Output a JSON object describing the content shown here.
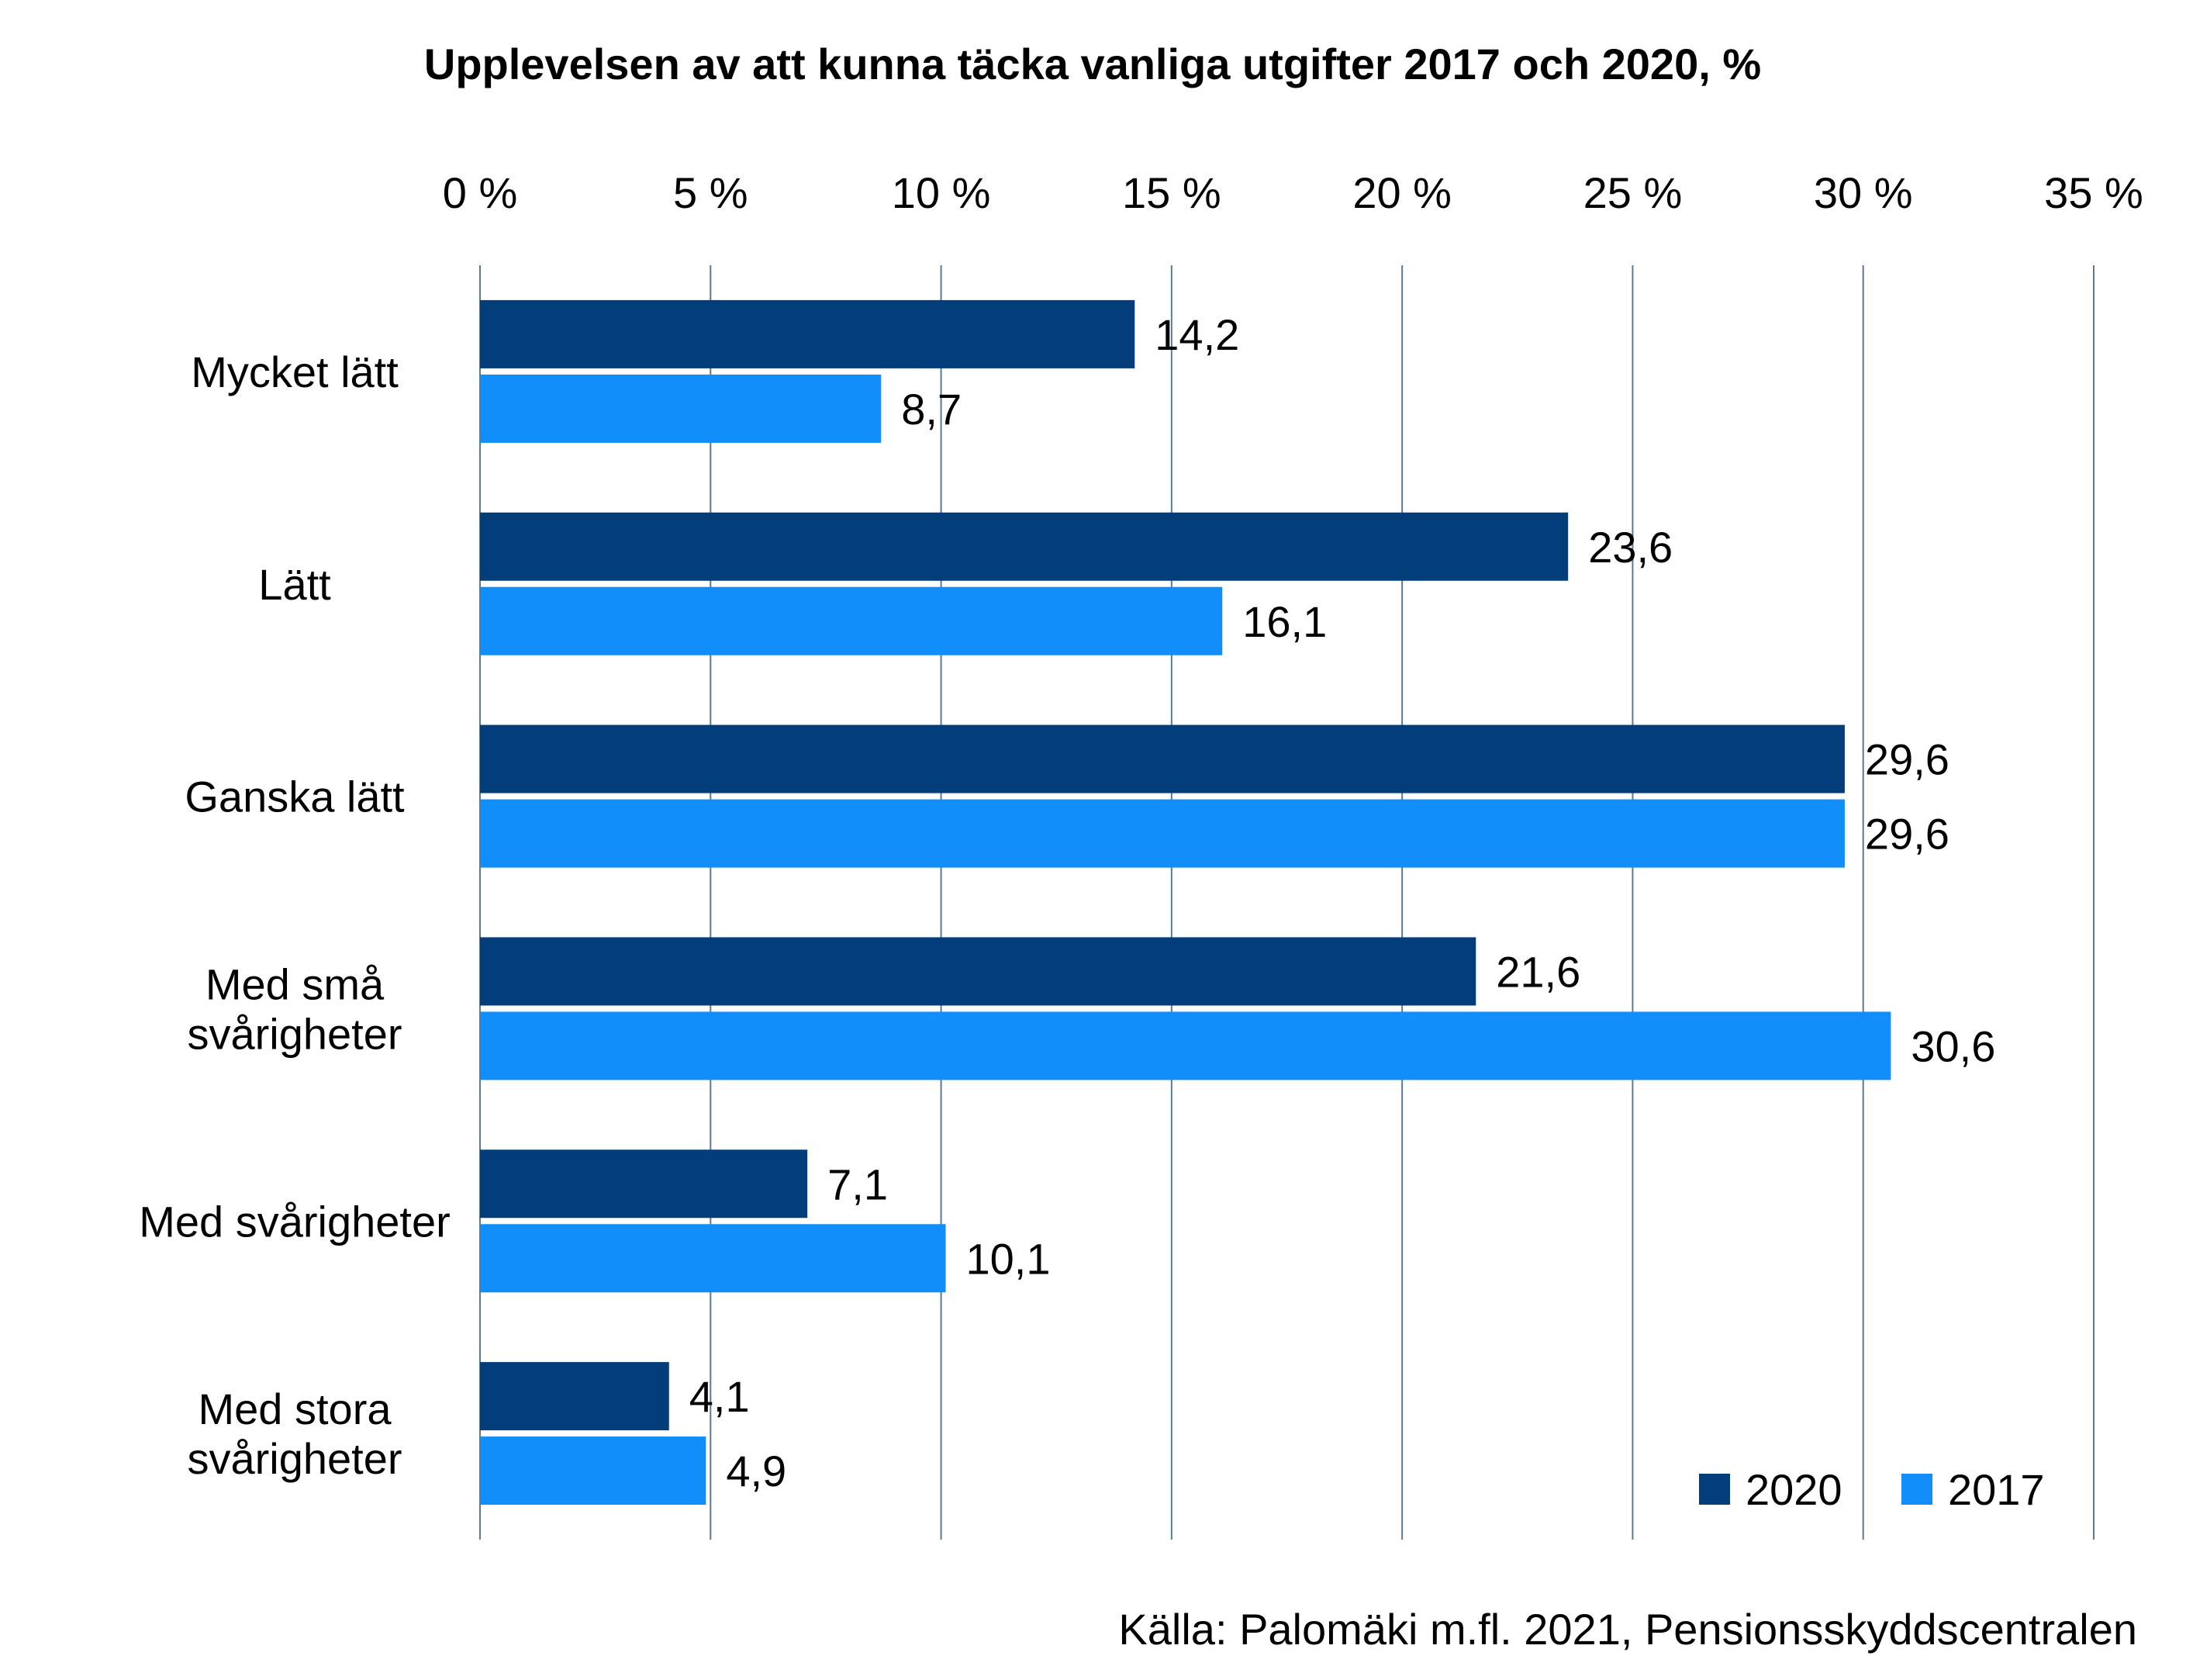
{
  "chart_data": {
    "type": "bar",
    "orientation": "horizontal",
    "title": "Upplevelsen av att kunna täcka vanliga utgifter 2017 och 2020, %",
    "xlabel": "",
    "ylabel": "",
    "xlim": [
      0,
      35
    ],
    "x_ticks": [
      "0 %",
      "5 %",
      "10 %",
      "15 %",
      "20 %",
      "25 %",
      "30 %",
      "35 %"
    ],
    "x_tick_values": [
      0,
      5,
      10,
      15,
      20,
      25,
      30,
      35
    ],
    "x_axis_position": "top",
    "grid": true,
    "categories": [
      [
        "Mycket lätt"
      ],
      [
        "Lätt"
      ],
      [
        "Ganska lätt"
      ],
      [
        "Med små",
        "svårigheter"
      ],
      [
        "Med svårigheter"
      ],
      [
        "Med stora",
        "svårigheter"
      ]
    ],
    "series": [
      {
        "name": "2020",
        "color": "#043e7a",
        "values": [
          14.2,
          23.6,
          29.6,
          21.6,
          7.1,
          4.1
        ],
        "labels": [
          "14,2",
          "23,6",
          "29,6",
          "21,6",
          "7,1",
          "4,1"
        ]
      },
      {
        "name": "2017",
        "color": "#118efa",
        "values": [
          8.7,
          16.1,
          29.6,
          30.6,
          10.1,
          4.9
        ],
        "labels": [
          "8,7",
          "16,1",
          "29,6",
          "30,6",
          "10,1",
          "4,9"
        ]
      }
    ],
    "legend": {
      "position": "bottom-right",
      "entries": [
        "2020",
        "2017"
      ]
    },
    "source": "Källa: Palomäki m.fl. 2021, Pensionsskyddscentralen"
  }
}
